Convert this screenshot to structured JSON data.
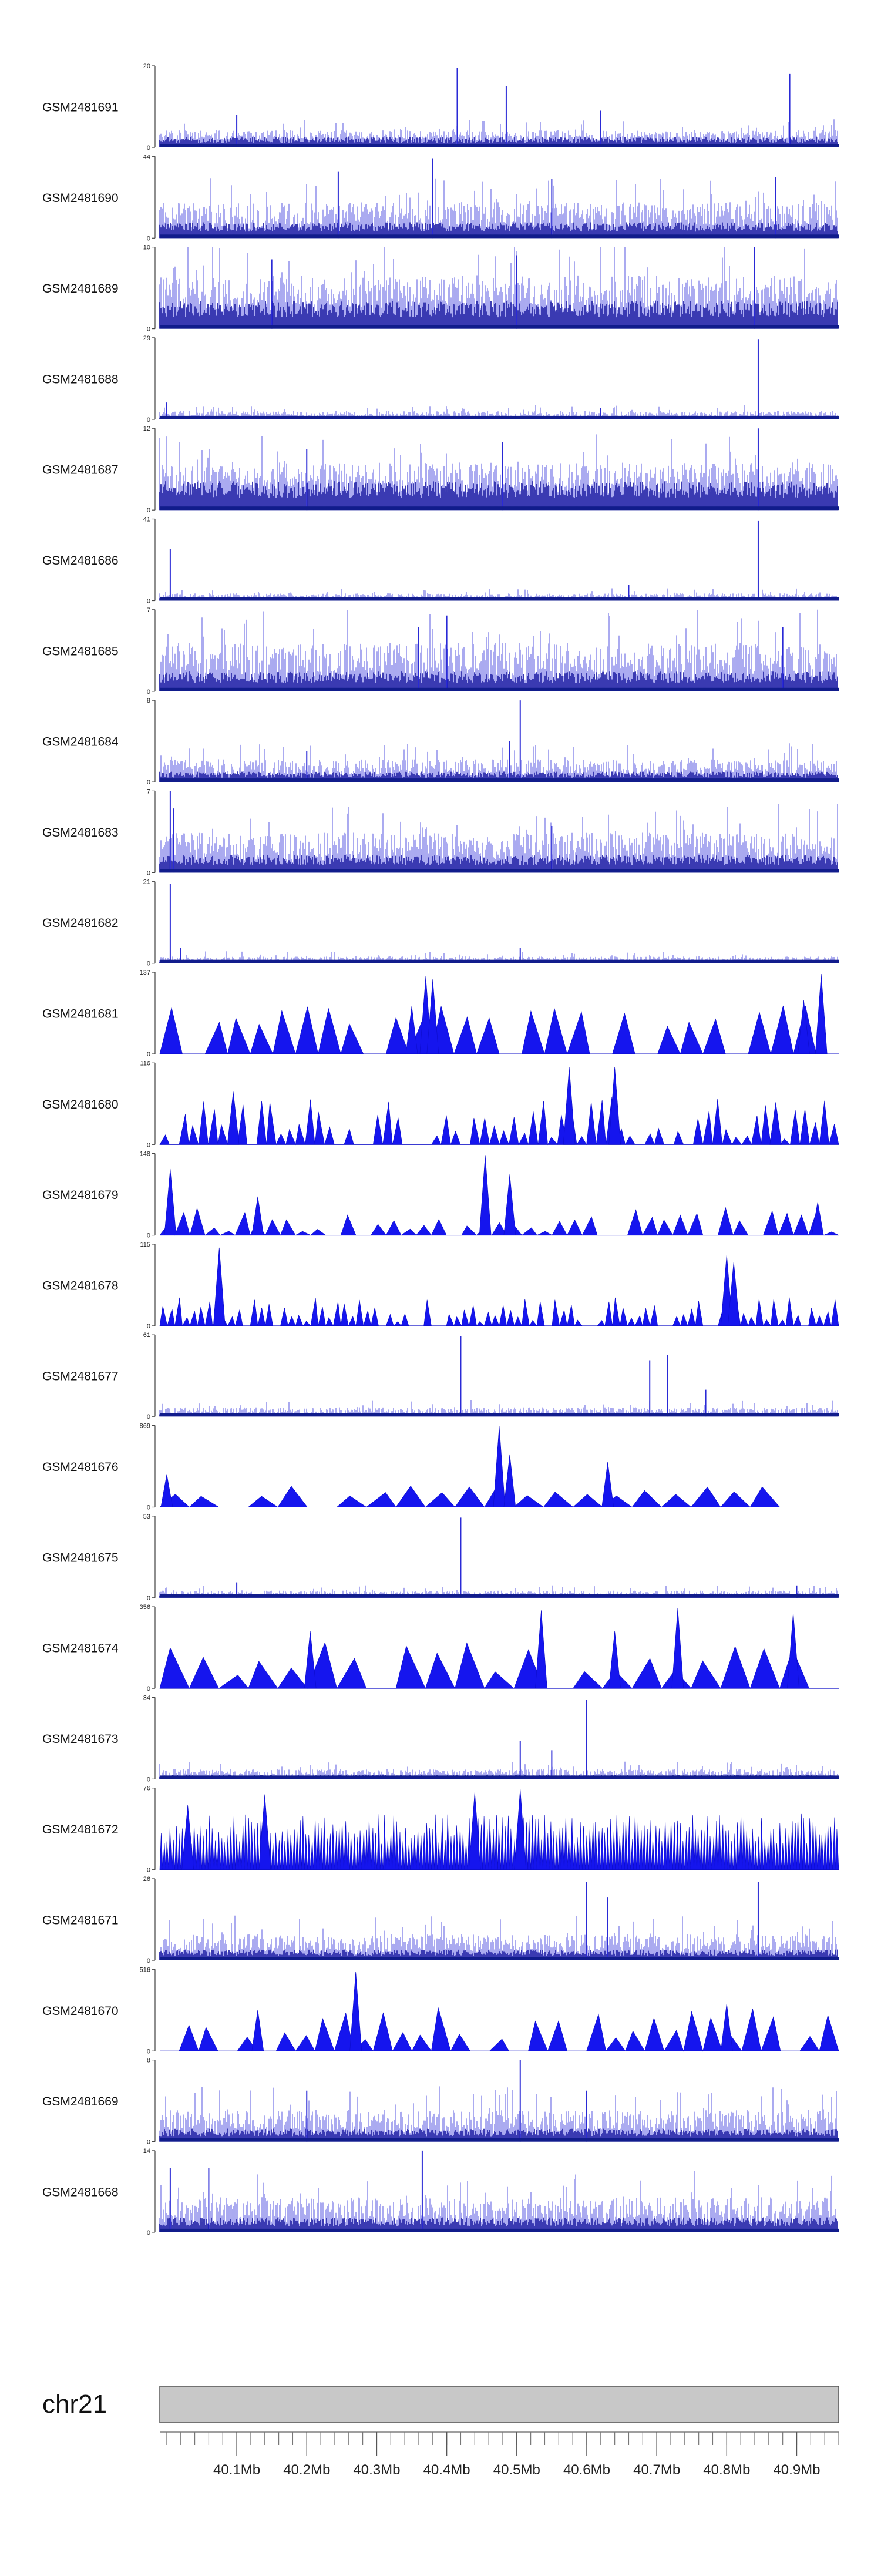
{
  "chart_data": {
    "type": "area",
    "title": "",
    "xlabel": "",
    "ylabel": "",
    "genome": {
      "chromosome": "chr21",
      "xlim_mb": [
        39.99,
        40.96
      ],
      "major_ticks_mb": [
        40.1,
        40.2,
        40.3,
        40.4,
        40.5,
        40.6,
        40.7,
        40.8,
        40.9
      ],
      "major_tick_labels": [
        "40.1Mb",
        "40.2Mb",
        "40.3Mb",
        "40.4Mb",
        "40.5Mb",
        "40.6Mb",
        "40.7Mb",
        "40.8Mb",
        "40.9Mb"
      ],
      "minor_tick_step_mb": 0.02
    },
    "series": [
      {
        "name": "GSM2481691",
        "ymin": 0,
        "ymax": 20,
        "ymin_label": "0",
        "ymax_label": "20",
        "style": "bars",
        "base_level": 3,
        "noise": 3,
        "density": 1.0,
        "peaks_mb": [
          {
            "x": 40.415,
            "y": 19.5
          },
          {
            "x": 40.485,
            "y": 15
          },
          {
            "x": 40.89,
            "y": 18
          },
          {
            "x": 40.1,
            "y": 8
          },
          {
            "x": 40.62,
            "y": 9
          }
        ]
      },
      {
        "name": "GSM2481690",
        "ymin": 0,
        "ymax": 44,
        "ymin_label": "0",
        "ymax_label": "44",
        "style": "bars",
        "base_level": 10,
        "noise": 16,
        "density": 1.0,
        "peaks_mb": [
          {
            "x": 40.38,
            "y": 43
          },
          {
            "x": 40.245,
            "y": 36
          },
          {
            "x": 40.55,
            "y": 32
          },
          {
            "x": 40.87,
            "y": 33
          }
        ]
      },
      {
        "name": "GSM2481689",
        "ymin": 0,
        "ymax": 10,
        "ymin_label": "0",
        "ymax_label": "10",
        "style": "bars",
        "base_level": 4,
        "noise": 5,
        "density": 1.0,
        "peaks_mb": [
          {
            "x": 40.84,
            "y": 10
          },
          {
            "x": 40.5,
            "y": 9
          },
          {
            "x": 40.15,
            "y": 8.5
          }
        ]
      },
      {
        "name": "GSM2481688",
        "ymin": 0,
        "ymax": 29,
        "ymin_label": "0",
        "ymax_label": "29",
        "style": "bars",
        "base_level": 1.5,
        "noise": 2.5,
        "density": 1.0,
        "peaks_mb": [
          {
            "x": 40.845,
            "y": 28.5
          },
          {
            "x": 40.0,
            "y": 6
          },
          {
            "x": 40.62,
            "y": 4
          }
        ]
      },
      {
        "name": "GSM2481687",
        "ymin": 0,
        "ymax": 12,
        "ymin_label": "0",
        "ymax_label": "12",
        "style": "bars",
        "base_level": 5,
        "noise": 5,
        "density": 1.0,
        "peaks_mb": [
          {
            "x": 40.845,
            "y": 12
          },
          {
            "x": 40.48,
            "y": 10
          },
          {
            "x": 40.2,
            "y": 9
          }
        ]
      },
      {
        "name": "GSM2481686",
        "ymin": 0,
        "ymax": 41,
        "ymin_label": "0",
        "ymax_label": "41",
        "style": "bars",
        "base_level": 2,
        "noise": 3,
        "density": 1.0,
        "peaks_mb": [
          {
            "x": 40.845,
            "y": 40
          },
          {
            "x": 40.005,
            "y": 26
          },
          {
            "x": 40.66,
            "y": 8
          }
        ]
      },
      {
        "name": "GSM2481685",
        "ymin": 0,
        "ymax": 7,
        "ymin_label": "0",
        "ymax_label": "7",
        "style": "bars",
        "base_level": 2,
        "noise": 3.5,
        "density": 1.0,
        "peaks_mb": [
          {
            "x": 40.4,
            "y": 6.5
          },
          {
            "x": 40.36,
            "y": 5.5
          },
          {
            "x": 40.88,
            "y": 5.5
          }
        ]
      },
      {
        "name": "GSM2481684",
        "ymin": 0,
        "ymax": 8,
        "ymin_label": "0",
        "ymax_label": "8",
        "style": "bars",
        "base_level": 1.2,
        "noise": 1.8,
        "density": 1.0,
        "peaks_mb": [
          {
            "x": 40.505,
            "y": 8
          },
          {
            "x": 40.49,
            "y": 4
          },
          {
            "x": 40.2,
            "y": 3
          }
        ]
      },
      {
        "name": "GSM2481683",
        "ymin": 0,
        "ymax": 7,
        "ymin_label": "0",
        "ymax_label": "7",
        "style": "bars",
        "base_level": 1.8,
        "noise": 2.8,
        "density": 1.0,
        "peaks_mb": [
          {
            "x": 40.005,
            "y": 7
          },
          {
            "x": 40.01,
            "y": 5.5
          },
          {
            "x": 40.55,
            "y": 4
          }
        ]
      },
      {
        "name": "GSM2481682",
        "ymin": 0,
        "ymax": 21,
        "ymin_label": "0",
        "ymax_label": "21",
        "style": "bars",
        "base_level": 0.8,
        "noise": 1.5,
        "density": 1.0,
        "peaks_mb": [
          {
            "x": 40.005,
            "y": 20.5
          },
          {
            "x": 40.505,
            "y": 4
          },
          {
            "x": 40.02,
            "y": 4
          }
        ]
      },
      {
        "name": "GSM2481681",
        "ymin": 0,
        "ymax": 137,
        "ymin_label": "0",
        "ymax_label": "137",
        "style": "spikes",
        "base_level": 65,
        "noise": 20,
        "density": 0.06,
        "peaks_mb": [
          {
            "x": 40.37,
            "y": 130
          },
          {
            "x": 40.38,
            "y": 125
          },
          {
            "x": 40.935,
            "y": 134
          },
          {
            "x": 40.91,
            "y": 90
          },
          {
            "x": 40.35,
            "y": 80
          }
        ]
      },
      {
        "name": "GSM2481680",
        "ymin": 0,
        "ymax": 116,
        "ymin_label": "0",
        "ymax_label": "116",
        "style": "spikes",
        "base_level": 38,
        "noise": 30,
        "density": 0.14,
        "peaks_mb": [
          {
            "x": 40.095,
            "y": 75
          },
          {
            "x": 40.575,
            "y": 110
          },
          {
            "x": 40.64,
            "y": 110
          },
          {
            "x": 40.87,
            "y": 60
          }
        ]
      },
      {
        "name": "GSM2481679",
        "ymin": 0,
        "ymax": 148,
        "ymin_label": "0",
        "ymax_label": "148",
        "style": "spikes",
        "base_level": 28,
        "noise": 22,
        "density": 0.09,
        "peaks_mb": [
          {
            "x": 40.005,
            "y": 120
          },
          {
            "x": 40.455,
            "y": 145
          },
          {
            "x": 40.49,
            "y": 110
          },
          {
            "x": 40.13,
            "y": 70
          },
          {
            "x": 40.93,
            "y": 60
          }
        ]
      },
      {
        "name": "GSM2481678",
        "ymin": 0,
        "ymax": 115,
        "ymin_label": "0",
        "ymax_label": "115",
        "style": "spikes",
        "base_level": 22,
        "noise": 18,
        "density": 0.18,
        "peaks_mb": [
          {
            "x": 40.075,
            "y": 110
          },
          {
            "x": 40.8,
            "y": 100
          },
          {
            "x": 40.81,
            "y": 90
          }
        ]
      },
      {
        "name": "GSM2481677",
        "ymin": 0,
        "ymax": 61,
        "ymin_label": "0",
        "ymax_label": "61",
        "style": "bars",
        "base_level": 3,
        "noise": 6,
        "density": 1.0,
        "peaks_mb": [
          {
            "x": 40.42,
            "y": 60
          },
          {
            "x": 40.69,
            "y": 42
          },
          {
            "x": 40.715,
            "y": 46
          },
          {
            "x": 40.77,
            "y": 20
          }
        ]
      },
      {
        "name": "GSM2481676",
        "ymin": 0,
        "ymax": 869,
        "ymin_label": "0",
        "ymax_label": "869",
        "style": "spikes",
        "base_level": 170,
        "noise": 60,
        "density": 0.045,
        "peaks_mb": [
          {
            "x": 40.475,
            "y": 860
          },
          {
            "x": 40.49,
            "y": 560
          },
          {
            "x": 40.0,
            "y": 350
          },
          {
            "x": 40.63,
            "y": 480
          }
        ]
      },
      {
        "name": "GSM2481675",
        "ymin": 0,
        "ymax": 53,
        "ymin_label": "0",
        "ymax_label": "53",
        "style": "bars",
        "base_level": 2,
        "noise": 4,
        "density": 1.0,
        "peaks_mb": [
          {
            "x": 40.42,
            "y": 52
          },
          {
            "x": 40.1,
            "y": 10
          },
          {
            "x": 40.9,
            "y": 8
          }
        ]
      },
      {
        "name": "GSM2481674",
        "ymin": 0,
        "ymax": 356,
        "ymin_label": "0",
        "ymax_label": "356",
        "style": "spikes",
        "base_level": 130,
        "noise": 80,
        "density": 0.045,
        "peaks_mb": [
          {
            "x": 40.535,
            "y": 340
          },
          {
            "x": 40.73,
            "y": 350
          },
          {
            "x": 40.205,
            "y": 250
          },
          {
            "x": 40.895,
            "y": 330
          },
          {
            "x": 40.64,
            "y": 250
          }
        ]
      },
      {
        "name": "GSM2481673",
        "ymin": 0,
        "ymax": 34,
        "ymin_label": "0",
        "ymax_label": "34",
        "style": "bars",
        "base_level": 2,
        "noise": 3.5,
        "density": 1.0,
        "peaks_mb": [
          {
            "x": 40.6,
            "y": 33
          },
          {
            "x": 40.505,
            "y": 16
          },
          {
            "x": 40.55,
            "y": 12
          }
        ]
      },
      {
        "name": "GSM2481672",
        "ymin": 0,
        "ymax": 76,
        "ymin_label": "0",
        "ymax_label": "76",
        "style": "spikes",
        "base_level": 38,
        "noise": 14,
        "density": 0.45,
        "peaks_mb": [
          {
            "x": 40.505,
            "y": 75
          },
          {
            "x": 40.14,
            "y": 70
          },
          {
            "x": 40.44,
            "y": 72
          },
          {
            "x": 40.03,
            "y": 60
          }
        ]
      },
      {
        "name": "GSM2481671",
        "ymin": 0,
        "ymax": 26,
        "ymin_label": "0",
        "ymax_label": "26",
        "style": "bars",
        "base_level": 4,
        "noise": 7,
        "density": 1.0,
        "peaks_mb": [
          {
            "x": 40.6,
            "y": 25
          },
          {
            "x": 40.845,
            "y": 25
          },
          {
            "x": 40.63,
            "y": 20
          }
        ]
      },
      {
        "name": "GSM2481670",
        "ymin": 0,
        "ymax": 516,
        "ymin_label": "0",
        "ymax_label": "516",
        "style": "spikes",
        "base_level": 170,
        "noise": 110,
        "density": 0.07,
        "peaks_mb": [
          {
            "x": 40.27,
            "y": 500
          },
          {
            "x": 40.8,
            "y": 300
          },
          {
            "x": 40.13,
            "y": 260
          }
        ]
      },
      {
        "name": "GSM2481669",
        "ymin": 0,
        "ymax": 8,
        "ymin_label": "0",
        "ymax_label": "8",
        "style": "bars",
        "base_level": 1.5,
        "noise": 2.6,
        "density": 1.0,
        "peaks_mb": [
          {
            "x": 40.505,
            "y": 8
          },
          {
            "x": 40.6,
            "y": 5
          },
          {
            "x": 40.2,
            "y": 5
          }
        ]
      },
      {
        "name": "GSM2481668",
        "ymin": 0,
        "ymax": 14,
        "ymin_label": "0",
        "ymax_label": "14",
        "style": "bars",
        "base_level": 3,
        "noise": 5,
        "density": 1.0,
        "peaks_mb": [
          {
            "x": 40.365,
            "y": 14
          },
          {
            "x": 40.06,
            "y": 11
          },
          {
            "x": 40.005,
            "y": 11
          }
        ]
      }
    ]
  }
}
